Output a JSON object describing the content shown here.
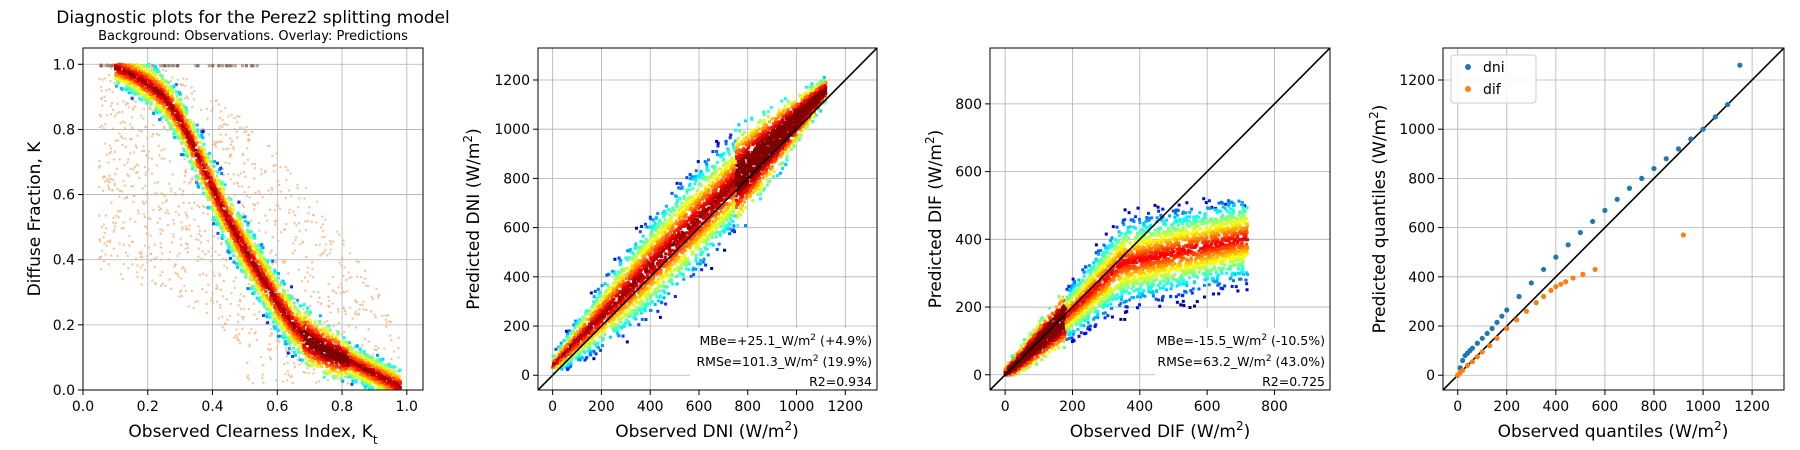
{
  "chart_data": [
    {
      "type": "scatter",
      "title": "Diagnostic plots for the Perez2 splitting model",
      "subtitle": "Background: Observations. Overlay: Predictions",
      "xlabel": "Observed Clearness Index, K",
      "xlabel_sub": "t",
      "ylabel": "Diffuse Fraction, K",
      "xlim": [
        0.0,
        1.05
      ],
      "ylim": [
        0.0,
        1.05
      ],
      "xticks": [
        "0.0",
        "0.2",
        "0.4",
        "0.6",
        "0.8",
        "1.0"
      ],
      "yticks": [
        "0.0",
        "0.2",
        "0.4",
        "0.6",
        "0.8",
        "1.0"
      ],
      "grid": true,
      "observations_color": "#f4b27c",
      "predictions_colormap": "jet",
      "prediction_curve": {
        "x": [
          0.1,
          0.15,
          0.2,
          0.25,
          0.3,
          0.35,
          0.4,
          0.45,
          0.5,
          0.55,
          0.6,
          0.65,
          0.7,
          0.75,
          0.8
        ],
        "y": [
          0.99,
          0.97,
          0.94,
          0.9,
          0.83,
          0.73,
          0.62,
          0.52,
          0.43,
          0.35,
          0.27,
          0.2,
          0.15,
          0.12,
          0.1
        ]
      }
    },
    {
      "type": "scatter",
      "xlabel": "Observed DNI (W/m",
      "ylabel": "Predicted DNI (W/m",
      "xlim": [
        -60,
        1330
      ],
      "ylim": [
        -60,
        1330
      ],
      "xticks": [
        0,
        200,
        400,
        600,
        800,
        1000,
        1200
      ],
      "yticks": [
        0,
        200,
        400,
        600,
        800,
        1000,
        1200
      ],
      "grid": true,
      "identity_line": true,
      "colormap": "jet",
      "stats": [
        "MBe=+25.1_W/m",
        " (+4.9%)",
        "RMSe=101.3_W/m",
        " (19.9%)",
        "R2=0.934"
      ]
    },
    {
      "type": "scatter",
      "xlabel": "Observed DIF (W/m",
      "ylabel": "Predicted DIF (W/m",
      "xlim": [
        -45,
        965
      ],
      "ylim": [
        -45,
        965
      ],
      "xticks": [
        0,
        200,
        400,
        600,
        800
      ],
      "yticks": [
        0,
        200,
        400,
        600,
        800
      ],
      "grid": true,
      "identity_line": true,
      "colormap": "jet",
      "stats": [
        "MBe=-15.5_W/m",
        " (-10.5%)",
        "RMSe=63.2_W/m",
        " (43.0%)",
        "R2=0.725"
      ]
    },
    {
      "type": "scatter",
      "xlabel": "Observed quantiles (W/m",
      "ylabel": "Predicted quantiles (W/m",
      "xlim": [
        -60,
        1330
      ],
      "ylim": [
        -60,
        1330
      ],
      "xticks": [
        0,
        200,
        400,
        600,
        800,
        1000,
        1200
      ],
      "yticks": [
        0,
        200,
        400,
        600,
        800,
        1000,
        1200
      ],
      "grid": true,
      "identity_line": true,
      "legend": "top-left",
      "series": [
        {
          "name": "dni",
          "color": "#1f77b4",
          "x": [
            0,
            10,
            20,
            30,
            40,
            50,
            60,
            80,
            100,
            120,
            140,
            160,
            180,
            200,
            250,
            300,
            350,
            400,
            450,
            500,
            550,
            600,
            650,
            700,
            750,
            800,
            850,
            900,
            950,
            1000,
            1050,
            1100,
            1150
          ],
          "y": [
            0,
            30,
            60,
            80,
            90,
            100,
            110,
            130,
            150,
            170,
            190,
            215,
            240,
            265,
            320,
            375,
            430,
            480,
            530,
            580,
            625,
            670,
            715,
            760,
            800,
            840,
            880,
            920,
            960,
            1000,
            1050,
            1100,
            1260
          ]
        },
        {
          "name": "dif",
          "color": "#ff7f0e",
          "x": [
            0,
            10,
            20,
            40,
            60,
            80,
            100,
            130,
            160,
            200,
            240,
            280,
            320,
            350,
            380,
            400,
            420,
            440,
            470,
            510,
            560,
            920
          ],
          "y": [
            0,
            10,
            20,
            40,
            55,
            75,
            95,
            120,
            150,
            190,
            225,
            260,
            295,
            320,
            345,
            360,
            370,
            380,
            395,
            410,
            430,
            570
          ]
        }
      ]
    }
  ]
}
